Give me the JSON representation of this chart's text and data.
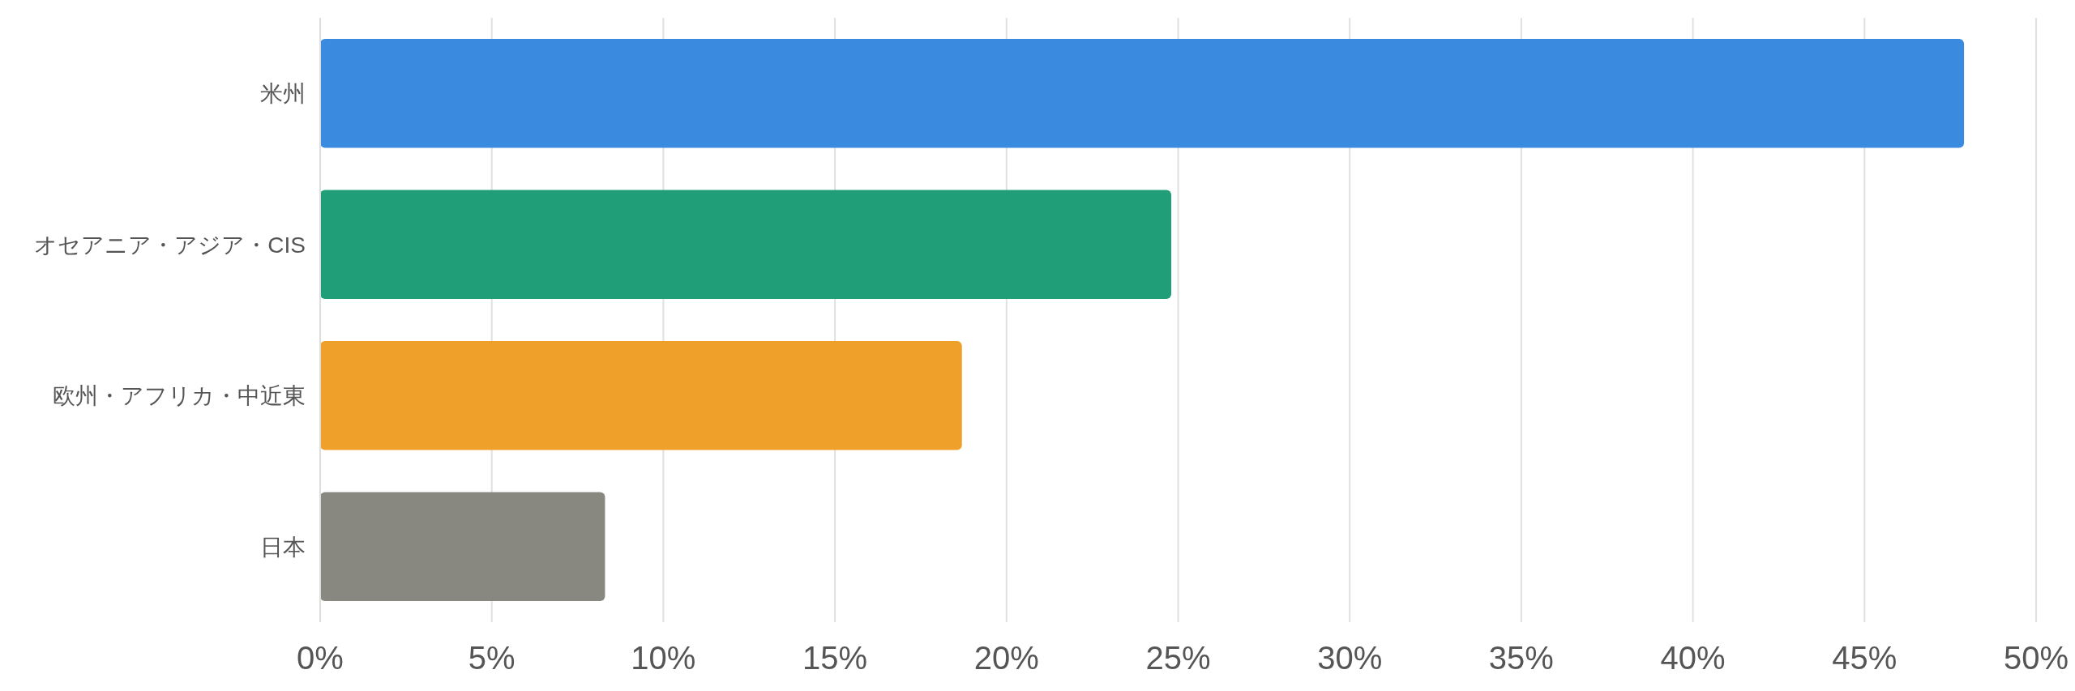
{
  "chart_data": {
    "type": "bar",
    "orientation": "horizontal",
    "categories": [
      "米州",
      "オセアニア・アジア・CIS",
      "欧州・アフリカ・中近東",
      "日本"
    ],
    "values": [
      47.9,
      24.8,
      18.7,
      8.3
    ],
    "colors": [
      "#3a8bdf",
      "#1f9e77",
      "#efa02a",
      "#888880"
    ],
    "xlim": [
      0,
      50
    ],
    "xticks": [
      {
        "value": 0,
        "label": "0%"
      },
      {
        "value": 5,
        "label": "5%"
      },
      {
        "value": 10,
        "label": "10%"
      },
      {
        "value": 15,
        "label": "15%"
      },
      {
        "value": 20,
        "label": "20%"
      },
      {
        "value": 25,
        "label": "25%"
      },
      {
        "value": 30,
        "label": "30%"
      },
      {
        "value": 35,
        "label": "35%"
      },
      {
        "value": 40,
        "label": "40%"
      },
      {
        "value": 45,
        "label": "45%"
      },
      {
        "value": 50,
        "label": "50%"
      }
    ],
    "grid": "x"
  }
}
